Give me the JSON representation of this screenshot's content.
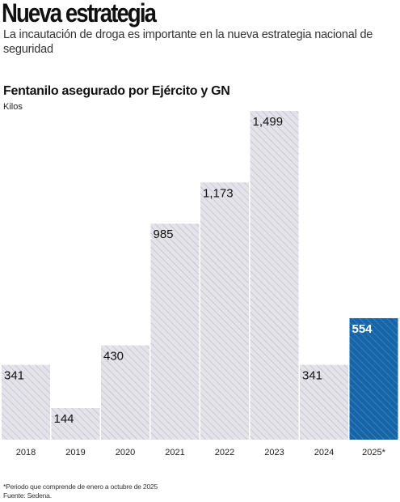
{
  "headline": "Nueva estrategia",
  "subtitle": "La incautación de droga es importante en la nueva estrategia nacional de seguridad",
  "chart_data": {
    "type": "bar",
    "title": "Fentanilo asegurado por  Ejército y GN",
    "ylabel": "Kilos",
    "xlabel": "",
    "categories": [
      "2018",
      "2019",
      "2020",
      "2021",
      "2022",
      "2023",
      "2024",
      "2025*"
    ],
    "values": [
      341,
      144,
      430,
      985,
      1173,
      1499,
      341,
      554
    ],
    "value_labels": [
      "341",
      "144",
      "430",
      "985",
      "1,173",
      "1,499",
      "341",
      "554"
    ],
    "ylim": [
      0,
      1499
    ],
    "grid": false,
    "legend": "none",
    "highlight_index": 7,
    "colors": {
      "bar_fill": "#e4e3ea",
      "bar_hatch": "#b9b8c4",
      "highlight_fill": "#1565a8",
      "highlight_hatch": "#4f90c7",
      "label_dark": "#111111",
      "label_light": "#ffffff"
    }
  },
  "footnote": "*Periodo que comprende de enero a octubre de 2025",
  "source": "Fuente: Sedena."
}
